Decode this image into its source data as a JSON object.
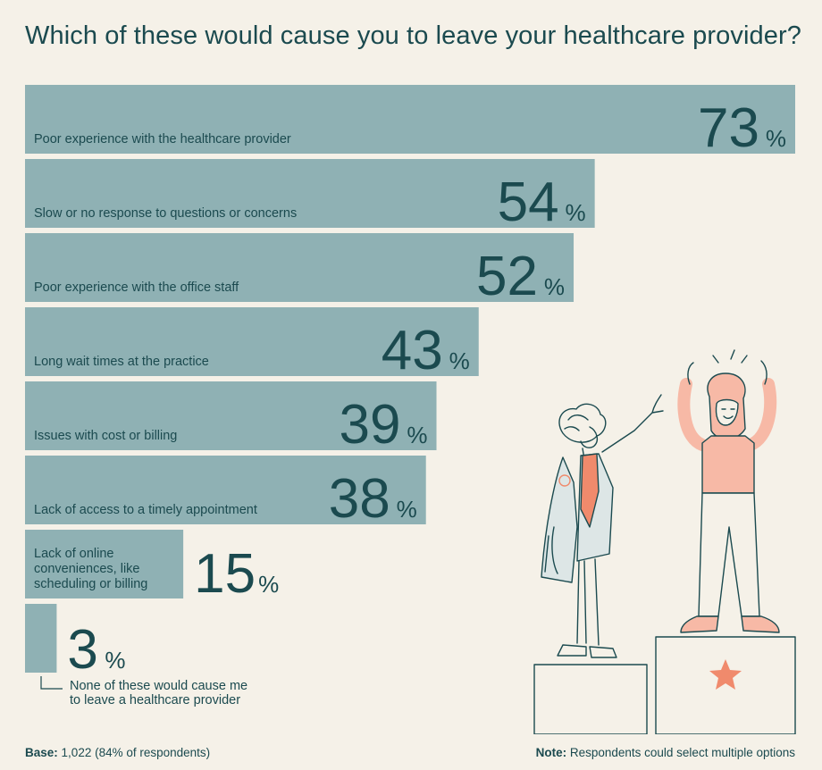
{
  "title": "Which of these would cause you to leave your healthcare provider?",
  "chart_data": {
    "type": "bar",
    "orientation": "horizontal",
    "title": "Which of these would cause you to leave your healthcare provider?",
    "unit": "%",
    "xlim": [
      0,
      73
    ],
    "grid": false,
    "bar_color": "#8fb1b4",
    "categories": [
      [
        "Poor experience with the healthcare provider"
      ],
      [
        "Slow or no response to questions or concerns"
      ],
      [
        "Poor experience with the office staff"
      ],
      [
        "Long wait times at the practice"
      ],
      [
        "Issues with cost or billing"
      ],
      [
        "Lack of access to a timely appointment"
      ],
      [
        "Lack of online",
        "conveniences, like",
        "scheduling or billing"
      ],
      [
        "None of these would cause me",
        "to leave a healthcare provider"
      ]
    ],
    "values": [
      73,
      54,
      52,
      43,
      39,
      38,
      15,
      3
    ]
  },
  "footer": {
    "base_label": "Base:",
    "base_text": "1,022 (84% of respondents)",
    "note_label": "Note:",
    "note_text": "Respondents could select multiple options"
  },
  "colors": {
    "background": "#f5f1e8",
    "bar": "#8fb1b4",
    "text": "#1b4a4f",
    "accent": "#f08a6c"
  }
}
